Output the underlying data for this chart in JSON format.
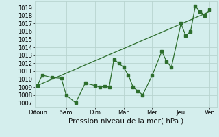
{
  "xlabel": "Pression niveau de la mer( hPa )",
  "background_color": "#d4eeed",
  "line_color": "#2d6e2d",
  "grid_color": "#b8d4d0",
  "ylim": [
    1006.5,
    1019.8
  ],
  "xlim": [
    -0.5,
    37.5
  ],
  "x_tick_labels": [
    "Ditoun",
    "Sam",
    "Dim",
    "Mar",
    "Mer",
    "Jeu",
    "Ven"
  ],
  "x_tick_positions": [
    0,
    6,
    12,
    18,
    24,
    30,
    36
  ],
  "yticks": [
    1007,
    1008,
    1009,
    1010,
    1011,
    1012,
    1013,
    1014,
    1015,
    1016,
    1017,
    1018,
    1019
  ],
  "actual_x": [
    0,
    1,
    3,
    5,
    6,
    8,
    10,
    12,
    13,
    14,
    15,
    16,
    17,
    18,
    19,
    20,
    21,
    22,
    24,
    26,
    27,
    28,
    30,
    31,
    32,
    33,
    34,
    35,
    36
  ],
  "actual_y": [
    1009.2,
    1010.5,
    1010.2,
    1010.1,
    1008.0,
    1007.0,
    1009.5,
    1009.2,
    1009.0,
    1009.1,
    1009.0,
    1012.5,
    1012.0,
    1011.5,
    1010.5,
    1009.0,
    1008.5,
    1008.0,
    1010.5,
    1013.5,
    1012.2,
    1011.5,
    1017.0,
    1015.5,
    1016.0,
    1019.2,
    1018.5,
    1018.0,
    1018.8
  ],
  "trend_x": [
    0,
    36
  ],
  "trend_y": [
    1009.2,
    1018.5
  ],
  "tick_fontsize": 6.0,
  "xlabel_fontsize": 7.5
}
